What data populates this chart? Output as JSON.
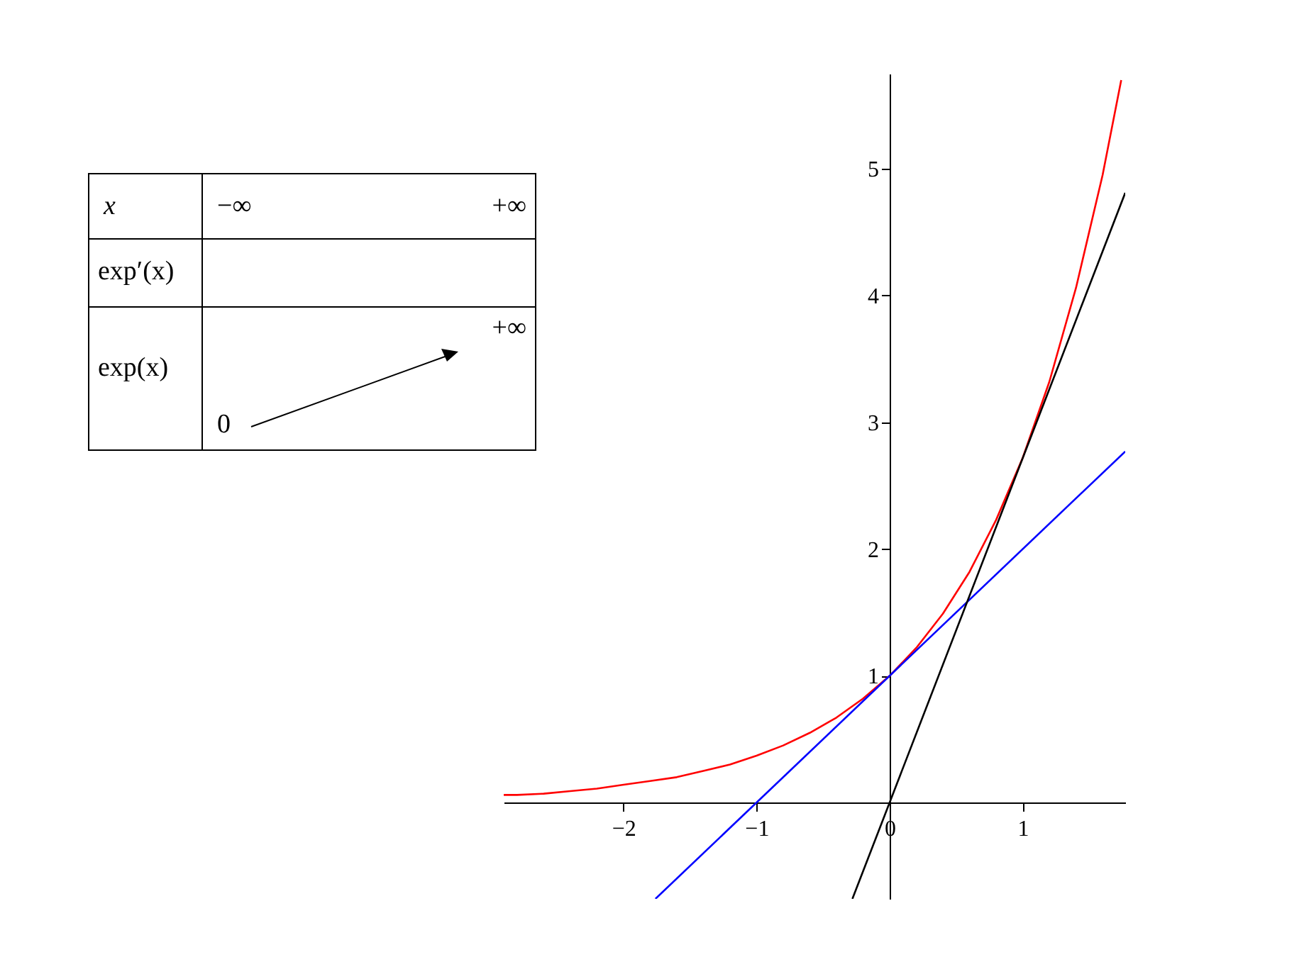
{
  "chart_data": [
    {
      "type": "other",
      "annotations": [
        "x",
        "−∞",
        "+∞",
        "exp′(x)",
        "exp(x)",
        "+∞",
        "0"
      ]
    },
    {
      "type": "line",
      "xlim": [
        -2.9,
        1.77
      ],
      "ylim": [
        -0.76,
        5.75
      ],
      "xticks": [
        -2,
        -1,
        0,
        1
      ],
      "yticks": [
        1,
        2,
        3,
        4,
        5
      ],
      "grid": false,
      "marker": "none",
      "line_style": "solid",
      "series": [
        {
          "color": "#ff0000",
          "x": [
            -2.9,
            -2.8,
            -2.6,
            -2.4,
            -2.2,
            -2.0,
            -1.8,
            -1.6,
            -1.4,
            -1.2,
            -1.0,
            -0.8,
            -0.6,
            -0.4,
            -0.2,
            0,
            0.2,
            0.4,
            0.6,
            0.8,
            1.0,
            1.2,
            1.4,
            1.6,
            1.74
          ],
          "values": [
            0.06,
            0.06,
            0.07,
            0.09,
            0.11,
            0.14,
            0.17,
            0.2,
            0.25,
            0.3,
            0.37,
            0.45,
            0.55,
            0.67,
            0.82,
            1,
            1.22,
            1.49,
            1.82,
            2.23,
            2.72,
            3.32,
            4.06,
            4.95,
            5.7
          ]
        },
        {
          "color": "#0000ff",
          "x": [
            -1.76,
            1.77
          ],
          "values": [
            -0.76,
            2.77
          ]
        },
        {
          "color": "#000000",
          "x": [
            -0.28,
            1.77
          ],
          "values": [
            -0.76,
            4.81
          ]
        }
      ]
    }
  ]
}
